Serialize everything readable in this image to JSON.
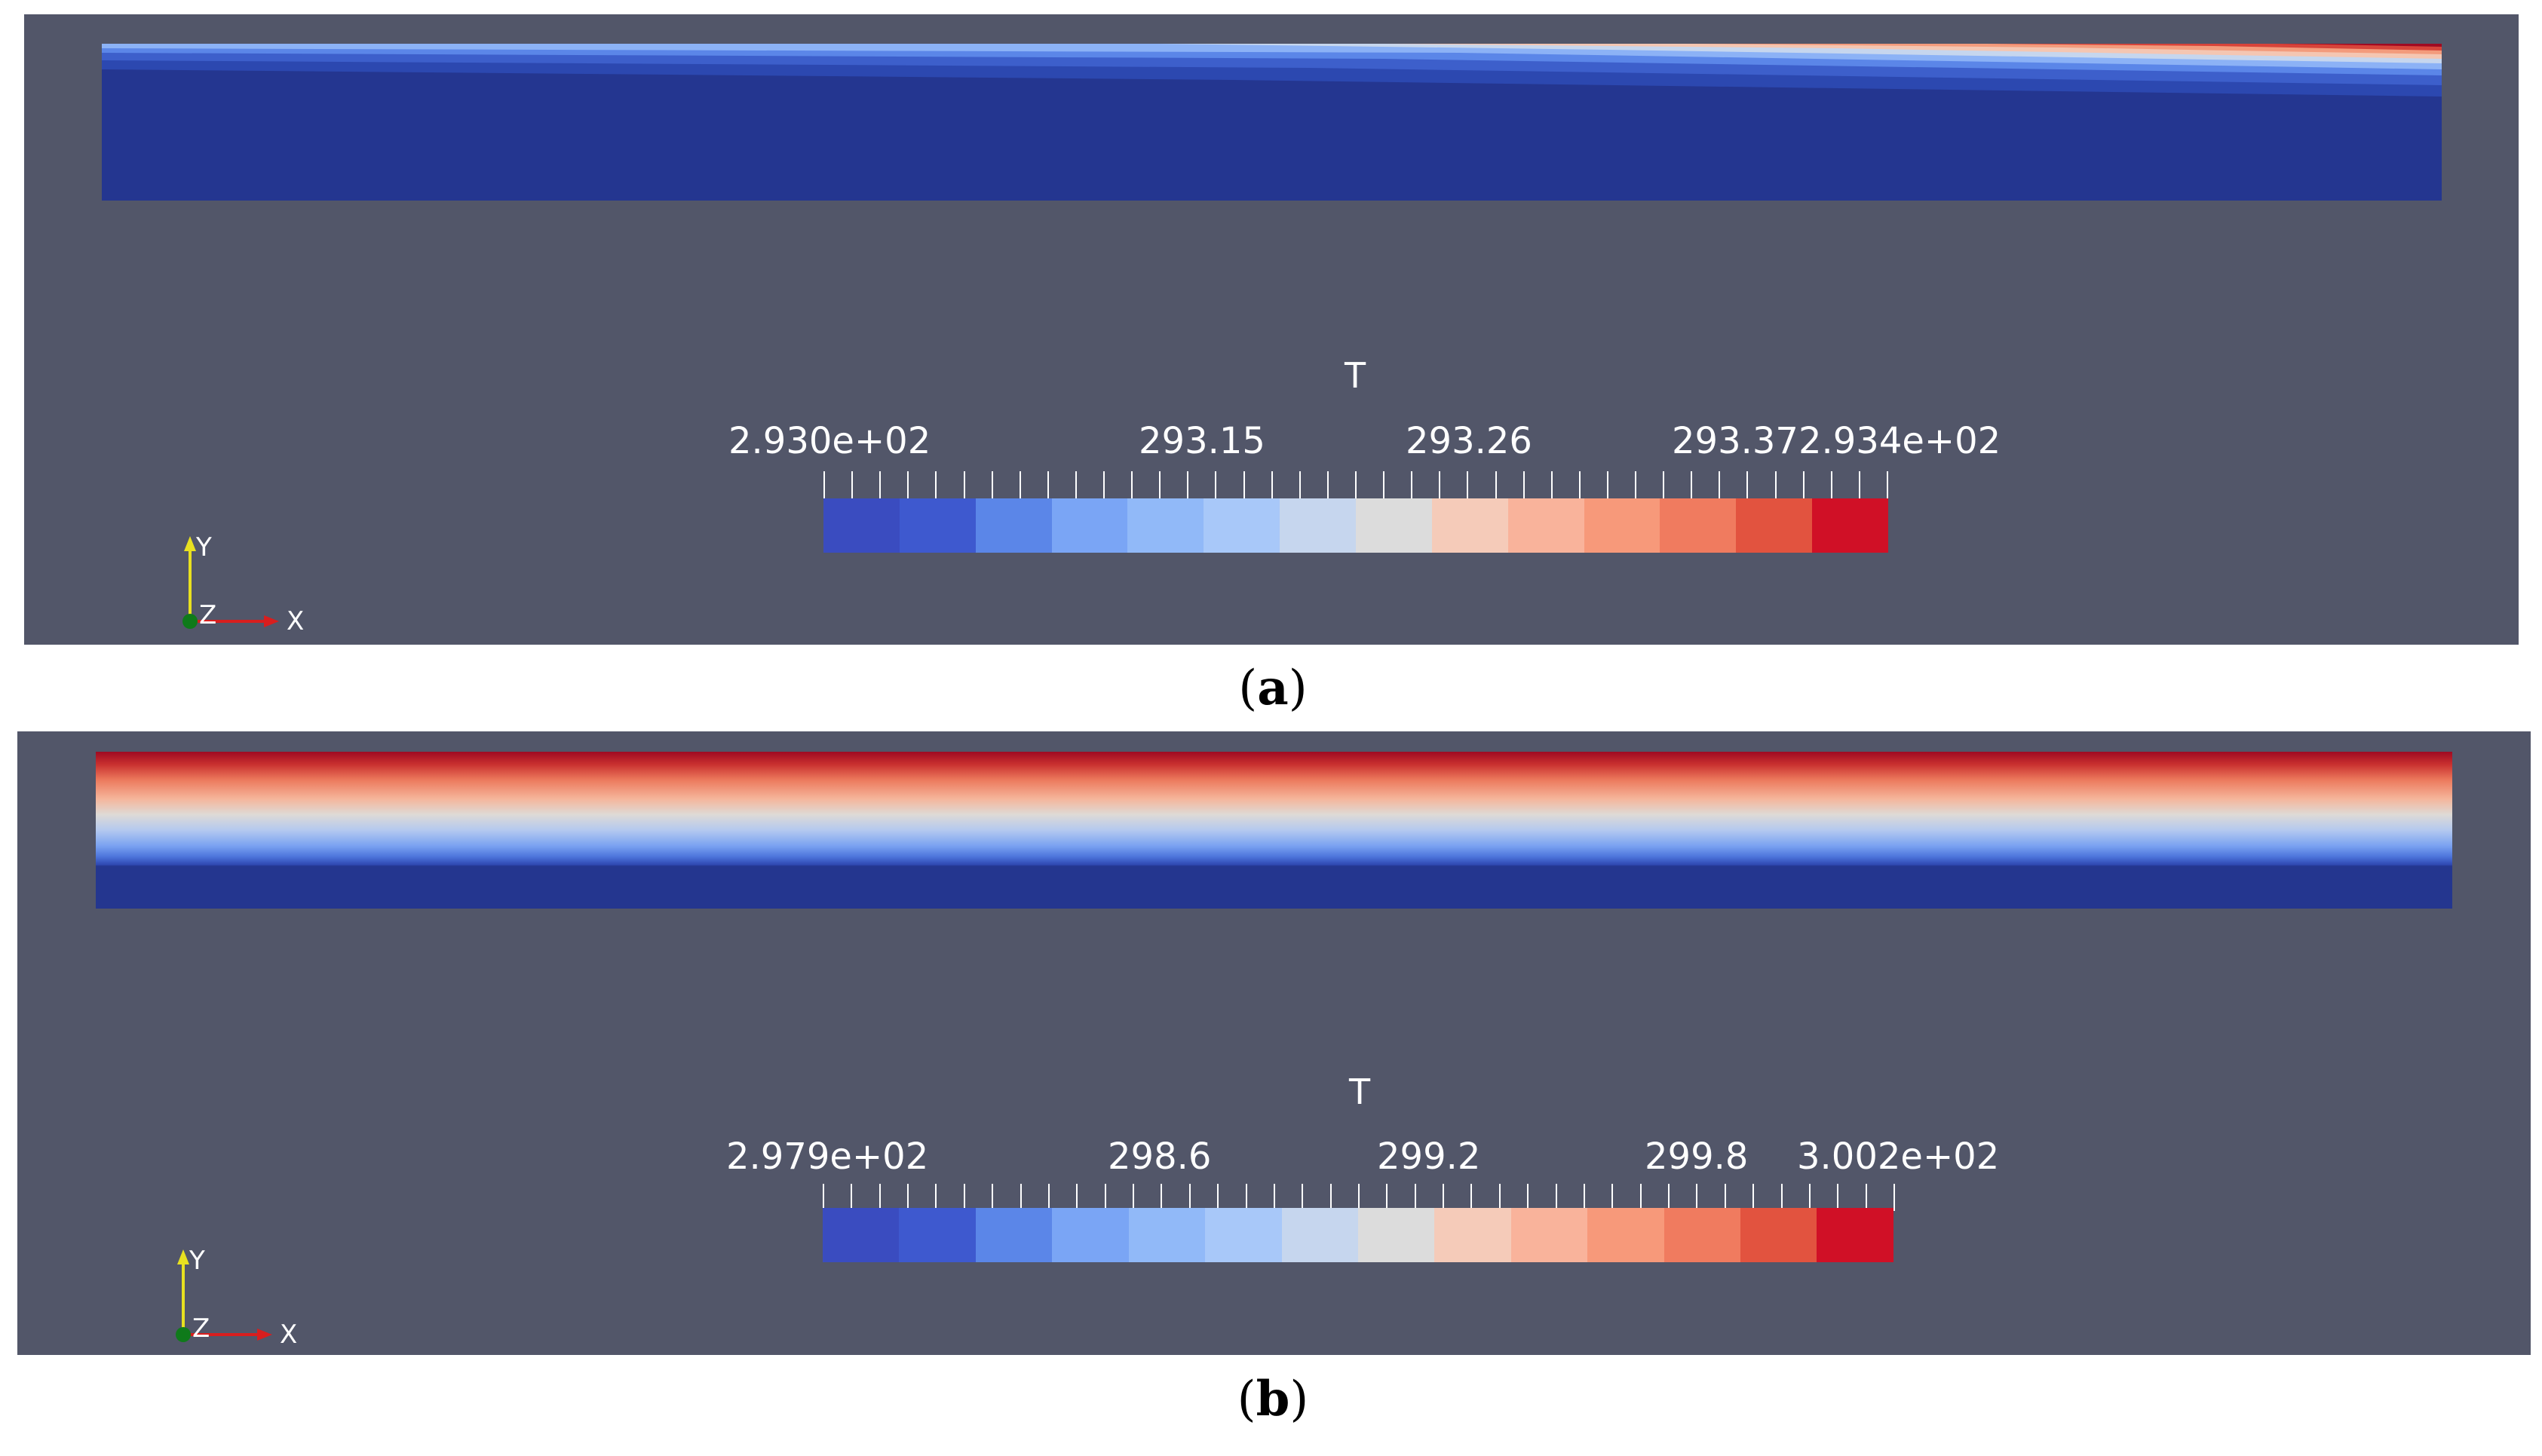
{
  "panels": [
    {
      "id": "a",
      "caption_letter": "a",
      "colorbar": {
        "title": "T",
        "labels": [
          "2.930e+02",
          "293.15",
          "293.26",
          "293.372.934e+02"
        ],
        "colors": [
          "#3a4cc0",
          "#3e59cf",
          "#5b86e8",
          "#7aa5f5",
          "#91b9f8",
          "#a8c8f9",
          "#c6d6ee",
          "#dcdcdc",
          "#f5cbb9",
          "#f9b39b",
          "#f7997a",
          "#f07b5f",
          "#e2533f",
          "#d01026"
        ]
      },
      "field": {
        "description_colors": [
          "#9f0a22",
          "#d7443a",
          "#f39b7c",
          "#dcdcdc",
          "#9bbcf6",
          "#5b86e8",
          "#3a5bc8",
          "#24368f"
        ]
      },
      "axes": {
        "y": "Y",
        "z": "Z",
        "x": "X"
      }
    },
    {
      "id": "b",
      "caption_letter": "b",
      "colorbar": {
        "title": "T",
        "labels": [
          "2.979e+02",
          "298.6",
          "299.2",
          "299.8",
          "3.002e+02"
        ],
        "colors": [
          "#3a4cc0",
          "#3e59cf",
          "#5b86e8",
          "#7aa5f5",
          "#91b9f8",
          "#a8c8f9",
          "#c6d6ee",
          "#dcdcdc",
          "#f5cbb9",
          "#f9b39b",
          "#f7997a",
          "#f07b5f",
          "#e2533f",
          "#d01026"
        ]
      },
      "field": {
        "description_colors": [
          "#9f0a22",
          "#d7443a",
          "#f39b7c",
          "#dcdcdc",
          "#9bbcf6",
          "#5b86e8",
          "#3a5bc8",
          "#24368f"
        ]
      },
      "axes": {
        "y": "Y",
        "z": "Z",
        "x": "X"
      }
    }
  ],
  "caption_parens": [
    "(",
    ")"
  ]
}
